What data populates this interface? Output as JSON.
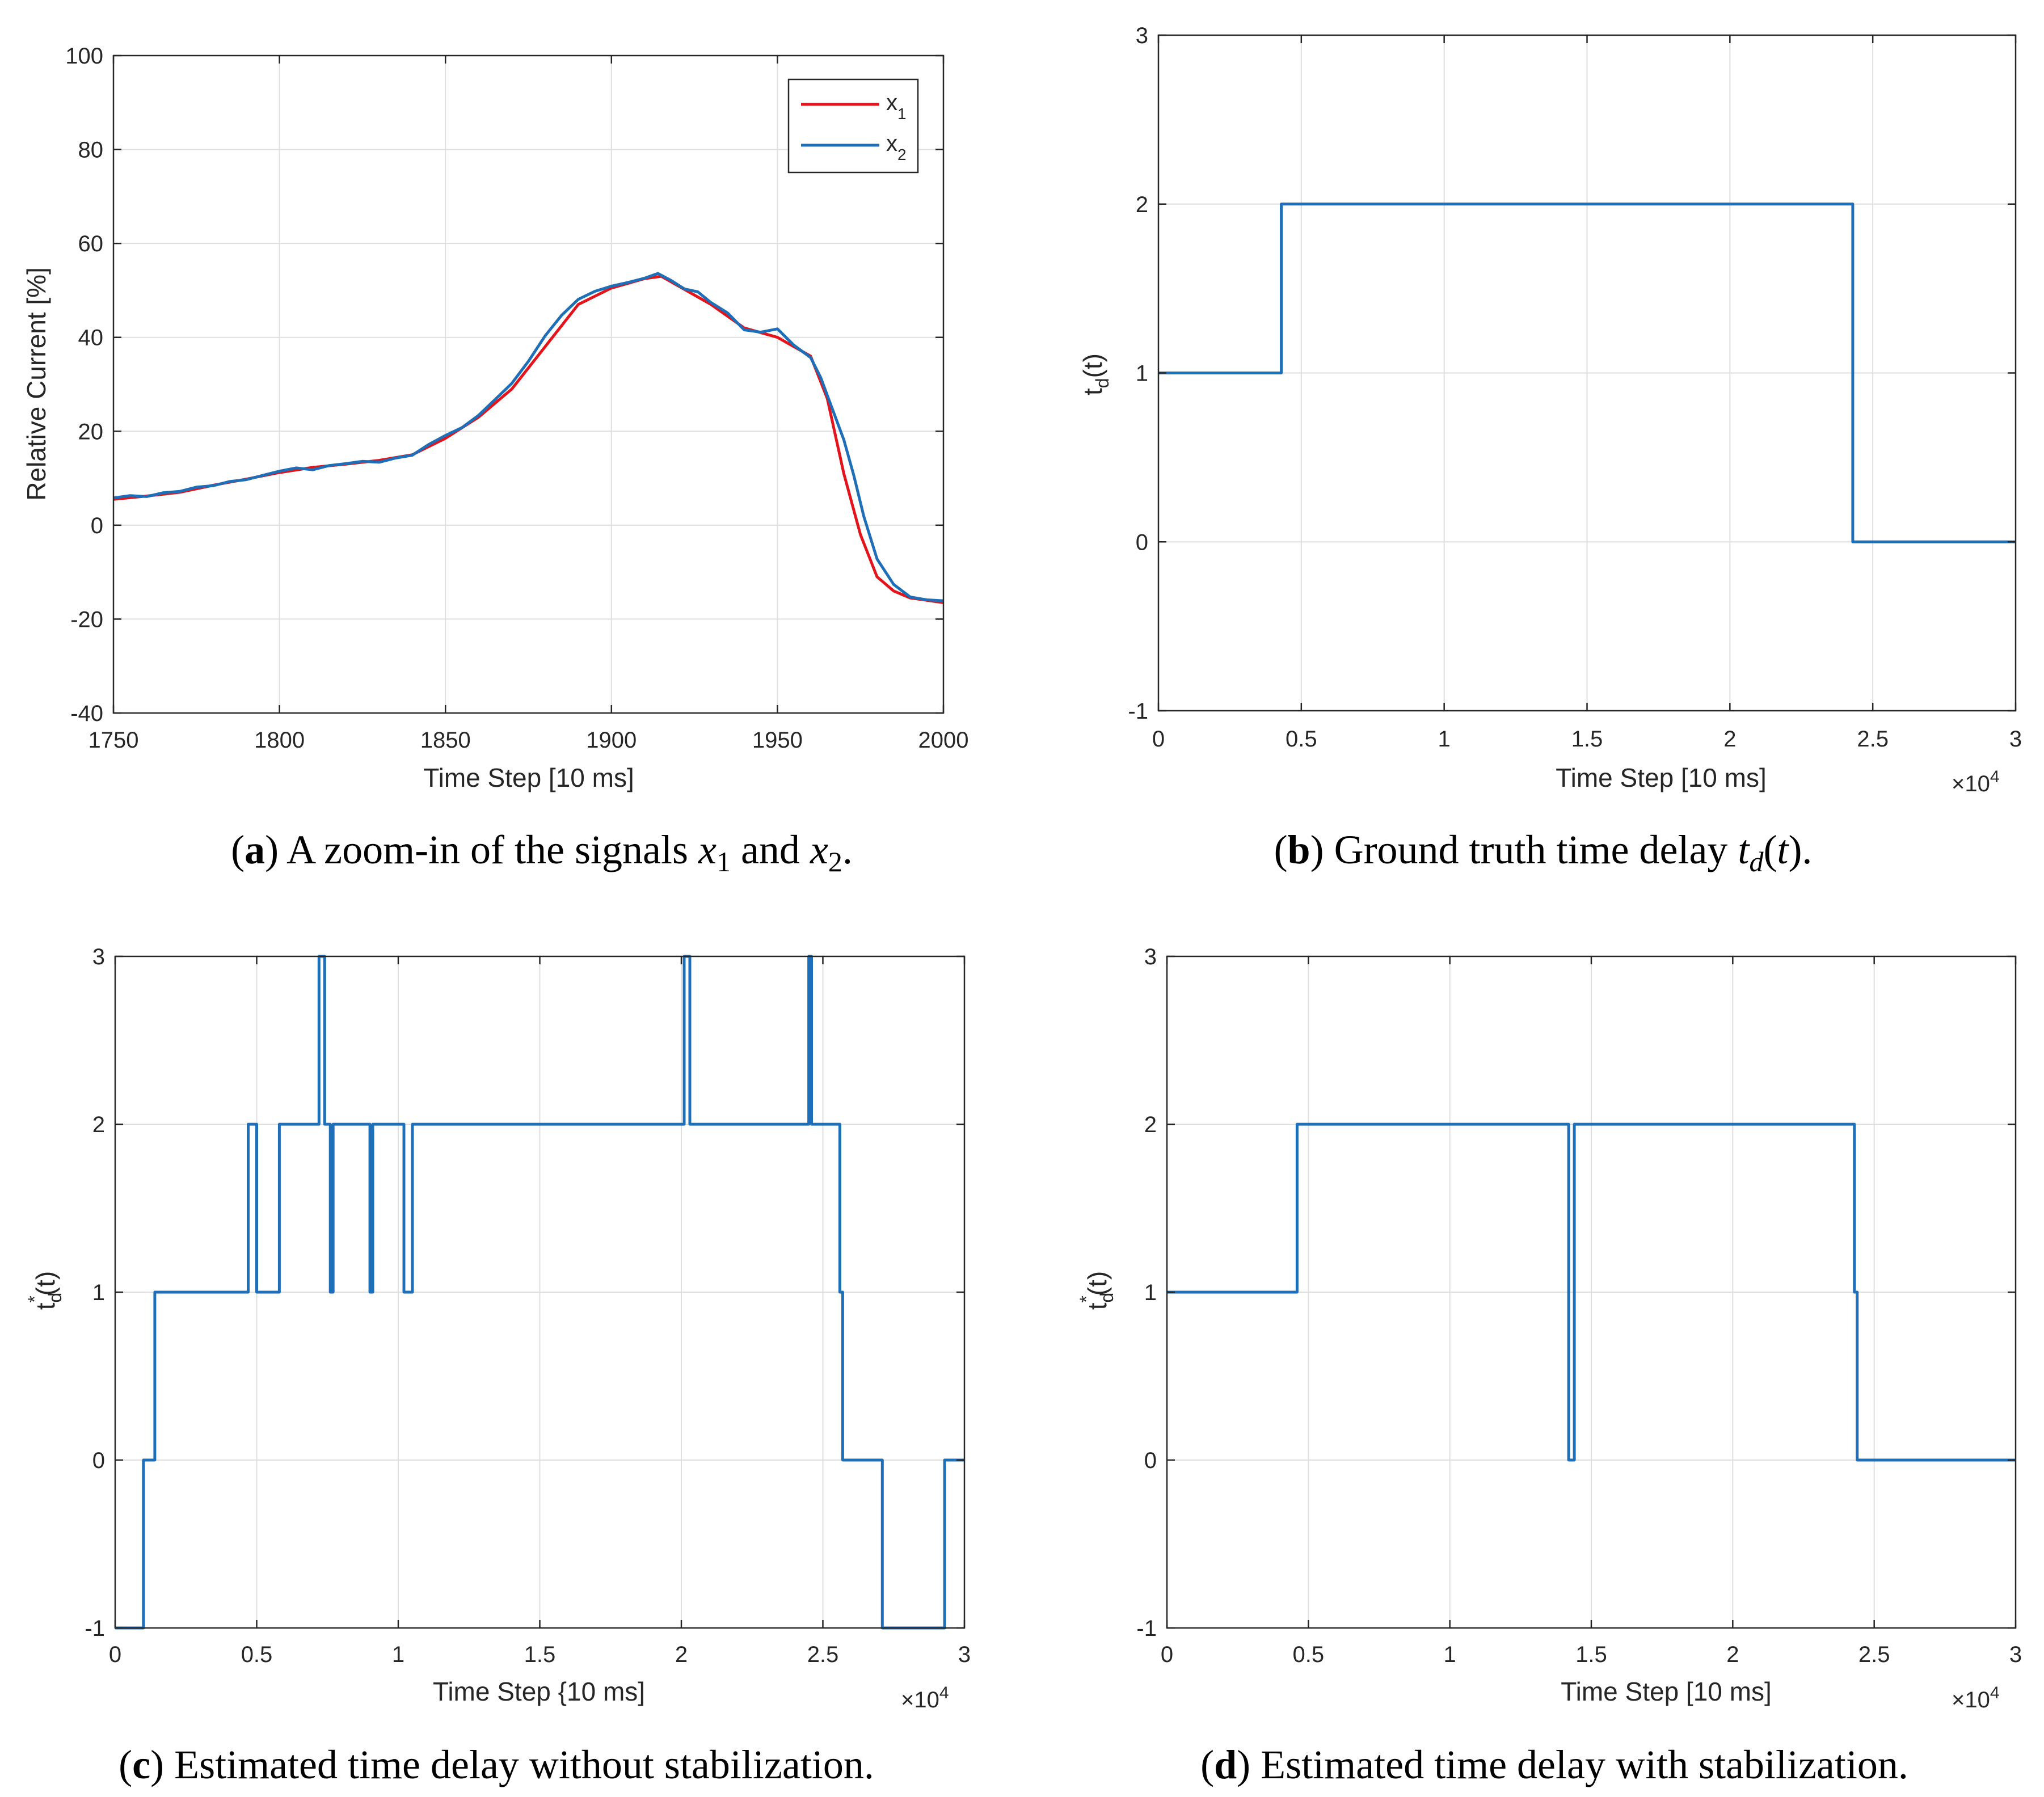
{
  "colors": {
    "x1": "#e3141b",
    "x2": "#1f6fb8",
    "step": "#1f6fb8"
  },
  "chart_data": [
    {
      "id": "a",
      "type": "line",
      "ylabel": "Relative Current [%]",
      "xlabel": "Time Step [10 ms]",
      "xlim": [
        1750,
        2000
      ],
      "ylim": [
        -40,
        100
      ],
      "xticks": [
        "1750",
        "1800",
        "1850",
        "1900",
        "1950",
        "2000"
      ],
      "yticks": [
        "-40",
        "-20",
        "0",
        "20",
        "40",
        "60",
        "80",
        "100"
      ],
      "legend": {
        "position": "top-right",
        "entries": [
          "x",
          "x"
        ],
        "subscripts": [
          "1",
          "2"
        ]
      },
      "series": [
        {
          "name": "x1",
          "x": [
            1750,
            1760,
            1770,
            1780,
            1790,
            1800,
            1810,
            1820,
            1830,
            1840,
            1850,
            1860,
            1870,
            1880,
            1890,
            1900,
            1910,
            1915,
            1920,
            1925,
            1930,
            1940,
            1950,
            1960,
            1965,
            1970,
            1975,
            1980,
            1985,
            1990,
            1995,
            2000
          ],
          "y": [
            5.5,
            6.2,
            7,
            8.5,
            9.8,
            11.2,
            12.3,
            13,
            13.8,
            15,
            18.5,
            23,
            29,
            38,
            47,
            50.5,
            52.5,
            53,
            51,
            49,
            47,
            42,
            40,
            36,
            27,
            11,
            -2,
            -11,
            -14,
            -15.5,
            -16,
            -16.5
          ]
        },
        {
          "name": "x2",
          "x": [
            1750,
            1755,
            1760,
            1765,
            1770,
            1775,
            1780,
            1785,
            1790,
            1795,
            1800,
            1805,
            1810,
            1815,
            1820,
            1825,
            1830,
            1835,
            1840,
            1845,
            1850,
            1855,
            1860,
            1865,
            1870,
            1875,
            1880,
            1885,
            1890,
            1895,
            1900,
            1905,
            1910,
            1914,
            1918,
            1922,
            1926,
            1930,
            1935,
            1940,
            1945,
            1950,
            1955,
            1960,
            1963,
            1966,
            1970,
            1973,
            1976,
            1980,
            1985,
            1990,
            1995,
            2000
          ],
          "y": [
            5.8,
            6.3,
            6.1,
            6.9,
            7.2,
            8.1,
            8.4,
            9.3,
            9.7,
            10.6,
            11.5,
            12.2,
            11.8,
            12.7,
            13.1,
            13.6,
            13.4,
            14.3,
            14.9,
            17.2,
            19.1,
            20.8,
            23.4,
            26.8,
            30.2,
            34.9,
            40.3,
            44.7,
            48.1,
            49.8,
            50.9,
            51.7,
            52.6,
            53.6,
            52.1,
            50.3,
            49.7,
            47.4,
            45.2,
            41.6,
            41.1,
            41.8,
            38.3,
            35.7,
            31.5,
            25.8,
            18.2,
            10.6,
            1.9,
            -7.2,
            -12.6,
            -15.3,
            -15.9,
            -16.1
          ]
        }
      ]
    },
    {
      "id": "b",
      "type": "line",
      "ylabel": "t",
      "ylabel_sub": "d",
      "ylabel_tail": "(t)",
      "xlabel": "Time Step [10 ms]",
      "exponent": "×10",
      "exponent_power": "4",
      "xlim": [
        0,
        3
      ],
      "ylim": [
        -1,
        3
      ],
      "xticks": [
        "0",
        "0.5",
        "1",
        "1.5",
        "2",
        "2.5",
        "3"
      ],
      "yticks": [
        "-1",
        "0",
        "1",
        "2",
        "3"
      ],
      "series": [
        {
          "name": "t_d(t)",
          "x": [
            0,
            0.43,
            0.43,
            2.43,
            2.43,
            3
          ],
          "y": [
            1,
            1,
            2,
            2,
            0,
            0
          ]
        }
      ]
    },
    {
      "id": "c",
      "type": "line",
      "ylabel": "t",
      "ylabel_sub": "d",
      "ylabel_sup": "*",
      "ylabel_tail": "(t)",
      "xlabel": "Time Step {10 ms]",
      "exponent": "×10",
      "exponent_power": "4",
      "xlim": [
        0,
        3
      ],
      "ylim": [
        -1,
        3
      ],
      "xticks": [
        "0",
        "0.5",
        "1",
        "1.5",
        "2",
        "2.5",
        "3"
      ],
      "yticks": [
        "-1",
        "0",
        "1",
        "2",
        "3"
      ],
      "series": [
        {
          "name": "t_d*(t)",
          "x": [
            0,
            0.1,
            0.1,
            0.14,
            0.14,
            0.47,
            0.47,
            0.5,
            0.5,
            0.58,
            0.58,
            0.72,
            0.72,
            0.74,
            0.74,
            0.76,
            0.76,
            0.77,
            0.77,
            0.9,
            0.9,
            0.91,
            0.91,
            1.02,
            1.02,
            1.05,
            1.05,
            2.01,
            2.01,
            2.03,
            2.03,
            2.45,
            2.45,
            2.46,
            2.46,
            2.56,
            2.56,
            2.57,
            2.57,
            2.71,
            2.71,
            2.93,
            2.93,
            3
          ],
          "y": [
            -1,
            -1,
            0,
            0,
            1,
            1,
            2,
            2,
            1,
            1,
            2,
            2,
            3,
            3,
            2,
            2,
            1,
            1,
            2,
            2,
            1,
            1,
            2,
            2,
            1,
            1,
            2,
            2,
            3,
            3,
            2,
            2,
            3,
            3,
            2,
            2,
            1,
            1,
            0,
            0,
            -1,
            -1,
            0,
            0
          ]
        }
      ]
    },
    {
      "id": "d",
      "type": "line",
      "ylabel": "t",
      "ylabel_sub": "d",
      "ylabel_sup": "*",
      "ylabel_tail": "(t)",
      "xlabel": "Time Step [10 ms]",
      "exponent": "×10",
      "exponent_power": "4",
      "xlim": [
        0,
        3
      ],
      "ylim": [
        -1,
        3
      ],
      "xticks": [
        "0",
        "0.5",
        "1",
        "1.5",
        "2",
        "2.5",
        "3"
      ],
      "yticks": [
        "-1",
        "0",
        "1",
        "2",
        "3"
      ],
      "series": [
        {
          "name": "t_d*(t) stabilized",
          "x": [
            0,
            0.46,
            0.46,
            1.42,
            1.42,
            1.44,
            1.44,
            2.43,
            2.43,
            2.44,
            2.44,
            3
          ],
          "y": [
            1,
            1,
            2,
            2,
            0,
            0,
            2,
            2,
            1,
            1,
            0,
            0
          ]
        }
      ]
    }
  ],
  "captions": [
    {
      "letter": "a",
      "text": ") A zoom-in of the signals ",
      "v1": "x",
      "s1": "1",
      "mid": " and ",
      "v2": "x",
      "s2": "2",
      "end": "."
    },
    {
      "letter": "b",
      "text": ") Ground truth time delay ",
      "v1": "t",
      "s1": "d",
      "mid": "(",
      "v2": "t",
      "end": ")."
    },
    {
      "letter": "c",
      "text": ") Estimated time delay without stabilization."
    },
    {
      "letter": "d",
      "text": ") Estimated time delay with stabilization."
    }
  ]
}
